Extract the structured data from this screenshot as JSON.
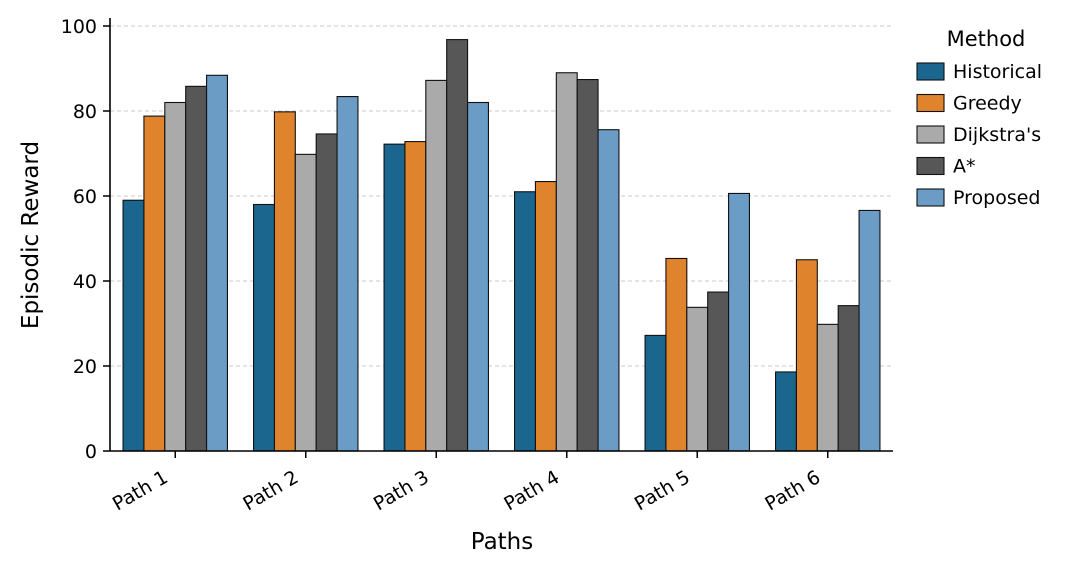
{
  "chart_data": {
    "type": "bar",
    "xlabel": "Paths",
    "ylabel": "Episodic Reward",
    "ylim": [
      0,
      100
    ],
    "yticks": [
      0,
      20,
      40,
      60,
      80,
      100
    ],
    "grid": "horizontal dashed",
    "legend_position": "top-right outside",
    "legend_title": "Method",
    "categories": [
      "Path 1",
      "Path 2",
      "Path 3",
      "Path 4",
      "Path 5",
      "Path 6"
    ],
    "series": [
      {
        "name": "Historical",
        "color": "#1a668f",
        "values": [
          59.0,
          58.0,
          72.2,
          61.0,
          27.2,
          18.6
        ]
      },
      {
        "name": "Greedy",
        "color": "#e0832d",
        "values": [
          78.8,
          79.8,
          72.8,
          63.4,
          45.3,
          45.0
        ]
      },
      {
        "name": "Dijkstra's",
        "color": "#aaaaaa",
        "values": [
          82.0,
          69.8,
          87.2,
          89.0,
          33.8,
          29.8
        ]
      },
      {
        "name": "A*",
        "color": "#575757",
        "values": [
          85.8,
          74.6,
          96.8,
          87.4,
          37.4,
          34.2
        ]
      },
      {
        "name": "Proposed",
        "color": "#6a9cc5",
        "values": [
          88.4,
          83.4,
          82.0,
          75.6,
          60.6,
          56.6
        ]
      }
    ]
  }
}
